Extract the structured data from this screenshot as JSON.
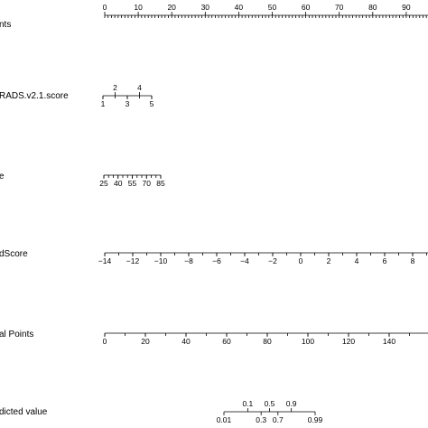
{
  "chart_data": {
    "type": "nomogram",
    "title": "",
    "rows": [
      {
        "key": "points",
        "label": "nts",
        "min": 0,
        "max": 100,
        "minor_step": 1,
        "tick_labels": [
          {
            "v": 0,
            "text": "0",
            "pos": "above"
          },
          {
            "v": 10,
            "text": "10",
            "pos": "above"
          },
          {
            "v": 20,
            "text": "20",
            "pos": "above"
          },
          {
            "v": 30,
            "text": "30",
            "pos": "above"
          },
          {
            "v": 40,
            "text": "40",
            "pos": "above"
          },
          {
            "v": 50,
            "text": "50",
            "pos": "above"
          },
          {
            "v": 60,
            "text": "60",
            "pos": "above"
          },
          {
            "v": 70,
            "text": "70",
            "pos": "above"
          },
          {
            "v": 80,
            "text": "80",
            "pos": "above"
          },
          {
            "v": 90,
            "text": "90",
            "pos": "above"
          }
        ]
      },
      {
        "key": "rads_score",
        "label": "RADS.v2.1.score",
        "min": 1,
        "max": 5,
        "minor_step": 1,
        "tick_labels": [
          {
            "v": 1,
            "text": "1",
            "pos": "below"
          },
          {
            "v": 2,
            "text": "2",
            "pos": "above"
          },
          {
            "v": 3,
            "text": "3",
            "pos": "below"
          },
          {
            "v": 4,
            "text": "4",
            "pos": "above"
          },
          {
            "v": 5,
            "text": "5",
            "pos": "below"
          }
        ]
      },
      {
        "key": "age",
        "label": "e",
        "min": 25,
        "max": 85,
        "minor_step": 5,
        "tick_labels": [
          {
            "v": 25,
            "text": "25",
            "pos": "below"
          },
          {
            "v": 40,
            "text": "40",
            "pos": "below"
          },
          {
            "v": 55,
            "text": "55",
            "pos": "below"
          },
          {
            "v": 70,
            "text": "70",
            "pos": "below"
          },
          {
            "v": 85,
            "text": "85",
            "pos": "below"
          }
        ]
      },
      {
        "key": "radscore",
        "label": "dScore",
        "min": -14,
        "max": 10,
        "minor_step": 1,
        "tick_labels": [
          {
            "v": -14,
            "text": "−14",
            "pos": "below"
          },
          {
            "v": -12,
            "text": "−12",
            "pos": "below"
          },
          {
            "v": -10,
            "text": "−10",
            "pos": "below"
          },
          {
            "v": -8,
            "text": "−8",
            "pos": "below"
          },
          {
            "v": -6,
            "text": "−6",
            "pos": "below"
          },
          {
            "v": -4,
            "text": "−4",
            "pos": "below"
          },
          {
            "v": -2,
            "text": "−2",
            "pos": "below"
          },
          {
            "v": 0,
            "text": "0",
            "pos": "below"
          },
          {
            "v": 2,
            "text": "2",
            "pos": "below"
          },
          {
            "v": 4,
            "text": "4",
            "pos": "below"
          },
          {
            "v": 6,
            "text": "6",
            "pos": "below"
          },
          {
            "v": 8,
            "text": "8",
            "pos": "below"
          }
        ]
      },
      {
        "key": "total_points",
        "label": "al Points",
        "min": 0,
        "max": 160,
        "minor_step": 10,
        "tick_labels": [
          {
            "v": 0,
            "text": "0",
            "pos": "below"
          },
          {
            "v": 20,
            "text": "20",
            "pos": "below"
          },
          {
            "v": 40,
            "text": "40",
            "pos": "below"
          },
          {
            "v": 60,
            "text": "60",
            "pos": "below"
          },
          {
            "v": 80,
            "text": "80",
            "pos": "below"
          },
          {
            "v": 100,
            "text": "100",
            "pos": "below"
          },
          {
            "v": 120,
            "text": "120",
            "pos": "below"
          },
          {
            "v": 140,
            "text": "140",
            "pos": "below"
          }
        ]
      },
      {
        "key": "predicted_value",
        "label": "dicted value",
        "min": 0.01,
        "max": 0.99,
        "minor_step": null,
        "tick_labels": [
          {
            "v": 0.01,
            "text": "0.01",
            "pos": "below"
          },
          {
            "v": 0.1,
            "text": "0.1",
            "pos": "above"
          },
          {
            "v": 0.3,
            "text": "0.3",
            "pos": "below"
          },
          {
            "v": 0.5,
            "text": "0.5",
            "pos": "above"
          },
          {
            "v": 0.7,
            "text": "0.7",
            "pos": "below"
          },
          {
            "v": 0.9,
            "text": "0.9",
            "pos": "above"
          },
          {
            "v": 0.99,
            "text": "0.99",
            "pos": "below"
          }
        ]
      }
    ]
  }
}
